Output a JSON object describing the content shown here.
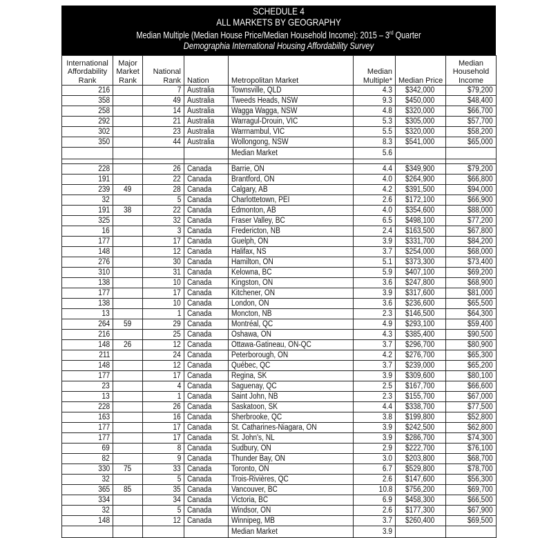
{
  "header": {
    "line1": "SCHEDULE 4",
    "line2": "ALL MARKETS BY GEOGRAPHY",
    "line3": "Median Multiple (Median House Price/Median Household Income): 2015 – 3",
    "line3_sup": "rd",
    "line3_end": " Quarter",
    "line4": "Demographia International Housing Affordability Survey"
  },
  "columns": [
    "International Affordability Rank",
    "Major Market Rank",
    "National Rank",
    "Nation",
    "Metropolitan Market",
    "Median Multiple*",
    "Median Price",
    "Median Household Income"
  ],
  "sections": [
    {
      "rows": [
        [
          "216",
          "",
          "7",
          "Australia",
          "Townsville, QLD",
          "4.3",
          "$342,000",
          "$79,200"
        ],
        [
          "358",
          "",
          "49",
          "Australia",
          "Tweeds Heads, NSW",
          "9.3",
          "$450,000",
          "$48,400"
        ],
        [
          "258",
          "",
          "14",
          "Australia",
          "Wagga Wagga, NSW",
          "4.8",
          "$320,000",
          "$66,700"
        ],
        [
          "292",
          "",
          "21",
          "Australia",
          "Warragul-Drouin, VIC",
          "5.3",
          "$305,000",
          "$57,700"
        ],
        [
          "302",
          "",
          "23",
          "Australia",
          "Warrnambul, VIC",
          "5.5",
          "$320,000",
          "$58,200"
        ],
        [
          "350",
          "",
          "44",
          "Australia",
          "Wollongong, NSW",
          "8.3",
          "$541,000",
          "$65,000"
        ]
      ],
      "median_label": "Median Market",
      "median_value": "5.6"
    },
    {
      "rows": [
        [
          "228",
          "",
          "26",
          "Canada",
          "Barrie, ON",
          "4.4",
          "$349,900",
          "$79,200"
        ],
        [
          "191",
          "",
          "22",
          "Canada",
          "Brantford, ON",
          "4.0",
          "$264,900",
          "$66,800"
        ],
        [
          "239",
          "49",
          "28",
          "Canada",
          "Calgary, AB",
          "4.2",
          "$391,500",
          "$94,000"
        ],
        [
          "32",
          "",
          "5",
          "Canada",
          "Charlottetown, PEI",
          "2.6",
          "$172,100",
          "$66,900"
        ],
        [
          "191",
          "38",
          "22",
          "Canada",
          "Edmonton, AB",
          "4.0",
          "$354,600",
          "$88,000"
        ],
        [
          "325",
          "",
          "32",
          "Canada",
          "Fraser Valley, BC",
          "6.5",
          "$498,100",
          "$77,200"
        ],
        [
          "16",
          "",
          "3",
          "Canada",
          "Fredericton, NB",
          "2.4",
          "$163,500",
          "$67,800"
        ],
        [
          "177",
          "",
          "17",
          "Canada",
          "Guelph, ON",
          "3.9",
          "$331,700",
          "$84,200"
        ],
        [
          "148",
          "",
          "12",
          "Canada",
          "Halifax, NS",
          "3.7",
          "$254,000",
          "$68,000"
        ],
        [
          "276",
          "",
          "30",
          "Canada",
          "Hamilton, ON",
          "5.1",
          "$373,300",
          "$73,400"
        ],
        [
          "310",
          "",
          "31",
          "Canada",
          "Kelowna, BC",
          "5.9",
          "$407,100",
          "$69,200"
        ],
        [
          "138",
          "",
          "10",
          "Canada",
          "Kingston, ON",
          "3.6",
          "$247,800",
          "$68,900"
        ],
        [
          "177",
          "",
          "17",
          "Canada",
          "Kitchener, ON",
          "3.9",
          "$317,600",
          "$81,000"
        ],
        [
          "138",
          "",
          "10",
          "Canada",
          "London, ON",
          "3.6",
          "$236,600",
          "$65,500"
        ],
        [
          "13",
          "",
          "1",
          "Canada",
          "Moncton, NB",
          "2.3",
          "$146,500",
          "$64,300"
        ],
        [
          "264",
          "59",
          "29",
          "Canada",
          "Montréal, QC",
          "4.9",
          "$293,100",
          "$59,400"
        ],
        [
          "216",
          "",
          "25",
          "Canada",
          "Oshawa, ON",
          "4.3",
          "$385,400",
          "$90,500"
        ],
        [
          "148",
          "26",
          "12",
          "Canada",
          "Ottawa-Gatineau, ON-QC",
          "3.7",
          "$296,700",
          "$80,900"
        ],
        [
          "211",
          "",
          "24",
          "Canada",
          "Peterborough, ON",
          "4.2",
          "$276,700",
          "$65,300"
        ],
        [
          "148",
          "",
          "12",
          "Canada",
          "Québec, QC",
          "3.7",
          "$239,000",
          "$65,200"
        ],
        [
          "177",
          "",
          "17",
          "Canada",
          "Regina, SK",
          "3.9",
          "$309,600",
          "$80,100"
        ],
        [
          "23",
          "",
          "4",
          "Canada",
          "Saguenay, QC",
          "2.5",
          "$167,700",
          "$66,600"
        ],
        [
          "13",
          "",
          "1",
          "Canada",
          "Saint John, NB",
          "2.3",
          "$155,700",
          "$67,000"
        ],
        [
          "228",
          "",
          "26",
          "Canada",
          "Saskatoon, SK",
          "4.4",
          "$338,700",
          "$77,500"
        ],
        [
          "163",
          "",
          "16",
          "Canada",
          "Sherbrooke, QC",
          "3.8",
          "$199,800",
          "$52,800"
        ],
        [
          "177",
          "",
          "17",
          "Canada",
          "St. Catharines-Niagara, ON",
          "3.9",
          "$242,500",
          "$62,800"
        ],
        [
          "177",
          "",
          "17",
          "Canada",
          "St. John's, NL",
          "3.9",
          "$286,700",
          "$74,300"
        ],
        [
          "69",
          "",
          "8",
          "Canada",
          "Sudbury, ON",
          "2.9",
          "$222,700",
          "$76,100"
        ],
        [
          "82",
          "",
          "9",
          "Canada",
          "Thunder Bay, ON",
          "3.0",
          "$203,800",
          "$68,700"
        ],
        [
          "330",
          "75",
          "33",
          "Canada",
          "Toronto, ON",
          "6.7",
          "$529,800",
          "$78,700"
        ],
        [
          "32",
          "",
          "5",
          "Canada",
          "Trois-Rivières, QC",
          "2.6",
          "$147,600",
          "$56,300"
        ],
        [
          "365",
          "85",
          "35",
          "Canada",
          "Vancouver, BC",
          "10.8",
          "$756,200",
          "$69,700"
        ],
        [
          "334",
          "",
          "34",
          "Canada",
          "Victoria, BC",
          "6.9",
          "$458,300",
          "$66,500"
        ],
        [
          "32",
          "",
          "5",
          "Canada",
          "Windsor, ON",
          "2.6",
          "$177,300",
          "$67,900"
        ],
        [
          "148",
          "",
          "12",
          "Canada",
          "Winnipeg, MB",
          "3.7",
          "$260,400",
          "$69,500"
        ]
      ],
      "median_label": "Median Market",
      "median_value": "3.9"
    }
  ]
}
